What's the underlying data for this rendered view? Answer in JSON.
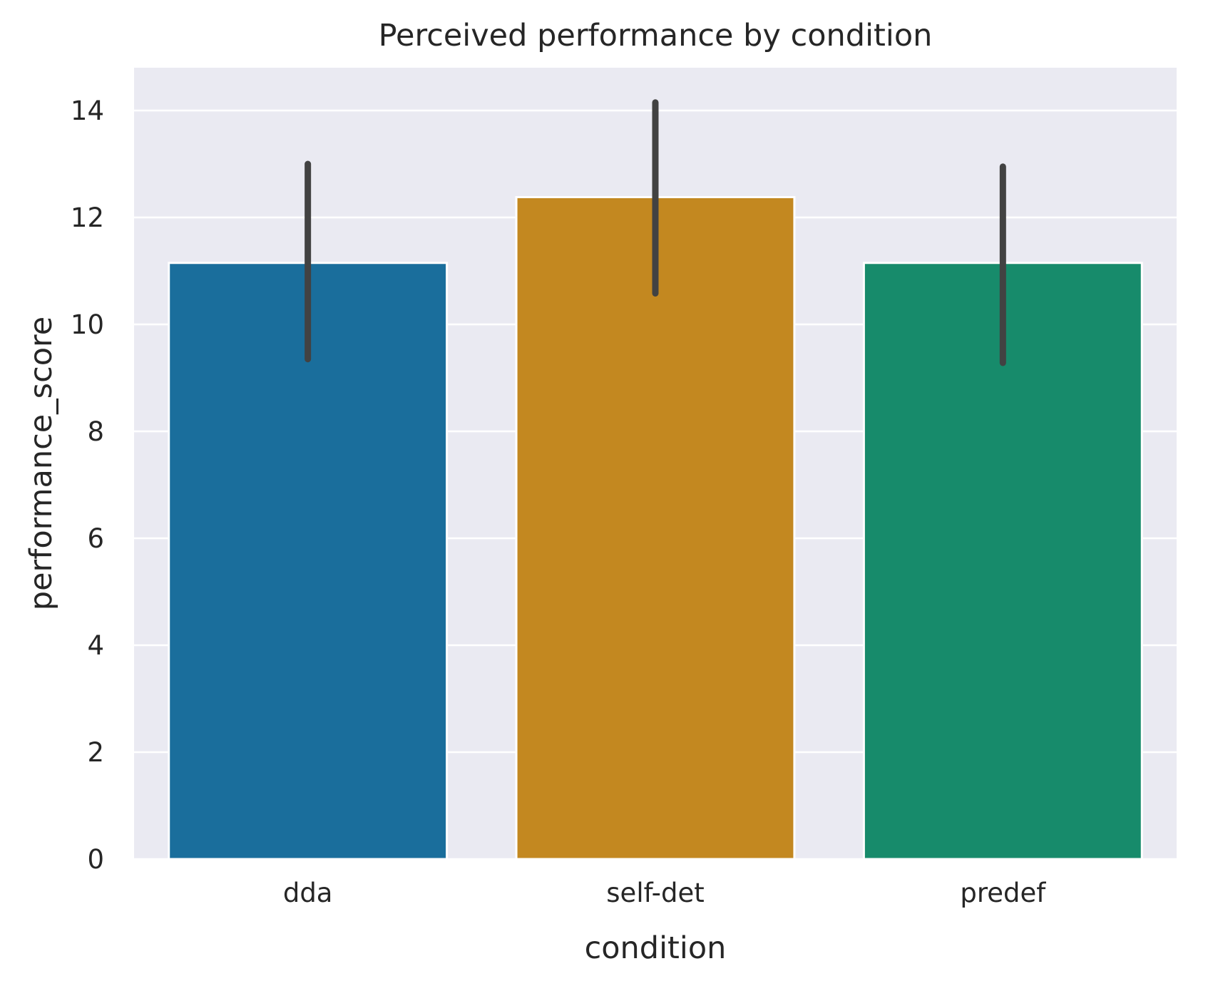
{
  "chart_data": {
    "type": "bar",
    "title": "Perceived performance by condition",
    "xlabel": "condition",
    "ylabel": "performance_score",
    "categories": [
      "dda",
      "self-det",
      "predef"
    ],
    "values": [
      11.15,
      12.38,
      11.15
    ],
    "error_bars": [
      {
        "low": 9.35,
        "high": 13.0
      },
      {
        "low": 10.58,
        "high": 14.15
      },
      {
        "low": 9.28,
        "high": 12.95
      }
    ],
    "colors": [
      "#1a6e9c",
      "#c38820",
      "#178b6b"
    ],
    "errorbar_color": "#424242",
    "background_color": "#eaeaf2",
    "grid_color": "#ffffff",
    "ylim": [
      0,
      14.8
    ],
    "yticks": [
      0,
      2,
      4,
      6,
      8,
      10,
      12,
      14
    ],
    "grid": true,
    "legend": "none"
  }
}
